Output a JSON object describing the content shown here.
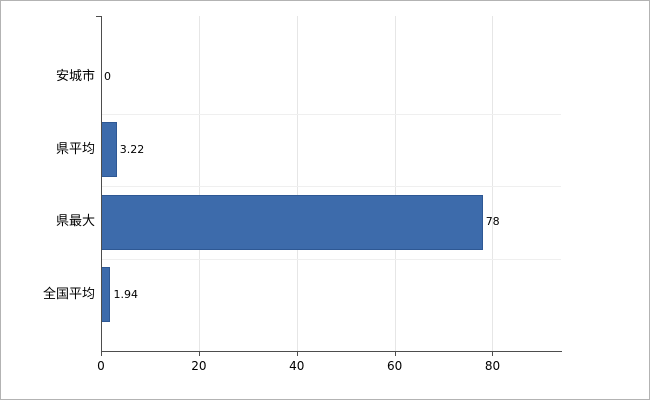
{
  "chart_data": {
    "type": "bar",
    "orientation": "horizontal",
    "title": "",
    "categories": [
      "安城市",
      "県平均",
      "県最大",
      "全国平均"
    ],
    "values": [
      0,
      3.22,
      78,
      1.94
    ],
    "value_labels": [
      "0",
      "3.22",
      "78",
      "1.94"
    ],
    "xlim": [
      0,
      94
    ],
    "xticks": [
      0,
      20,
      40,
      60,
      80
    ],
    "xtick_labels": [
      "0",
      "20",
      "40",
      "60",
      "80"
    ],
    "grid": true,
    "legend": "none",
    "bar_color": "#3d6bab",
    "bar_border_color": "#2e5894",
    "axis_color": "#4d4d4d",
    "gridline_color": "#e6e6e6",
    "separator_color": "#efefef",
    "background": "#ffffff"
  }
}
